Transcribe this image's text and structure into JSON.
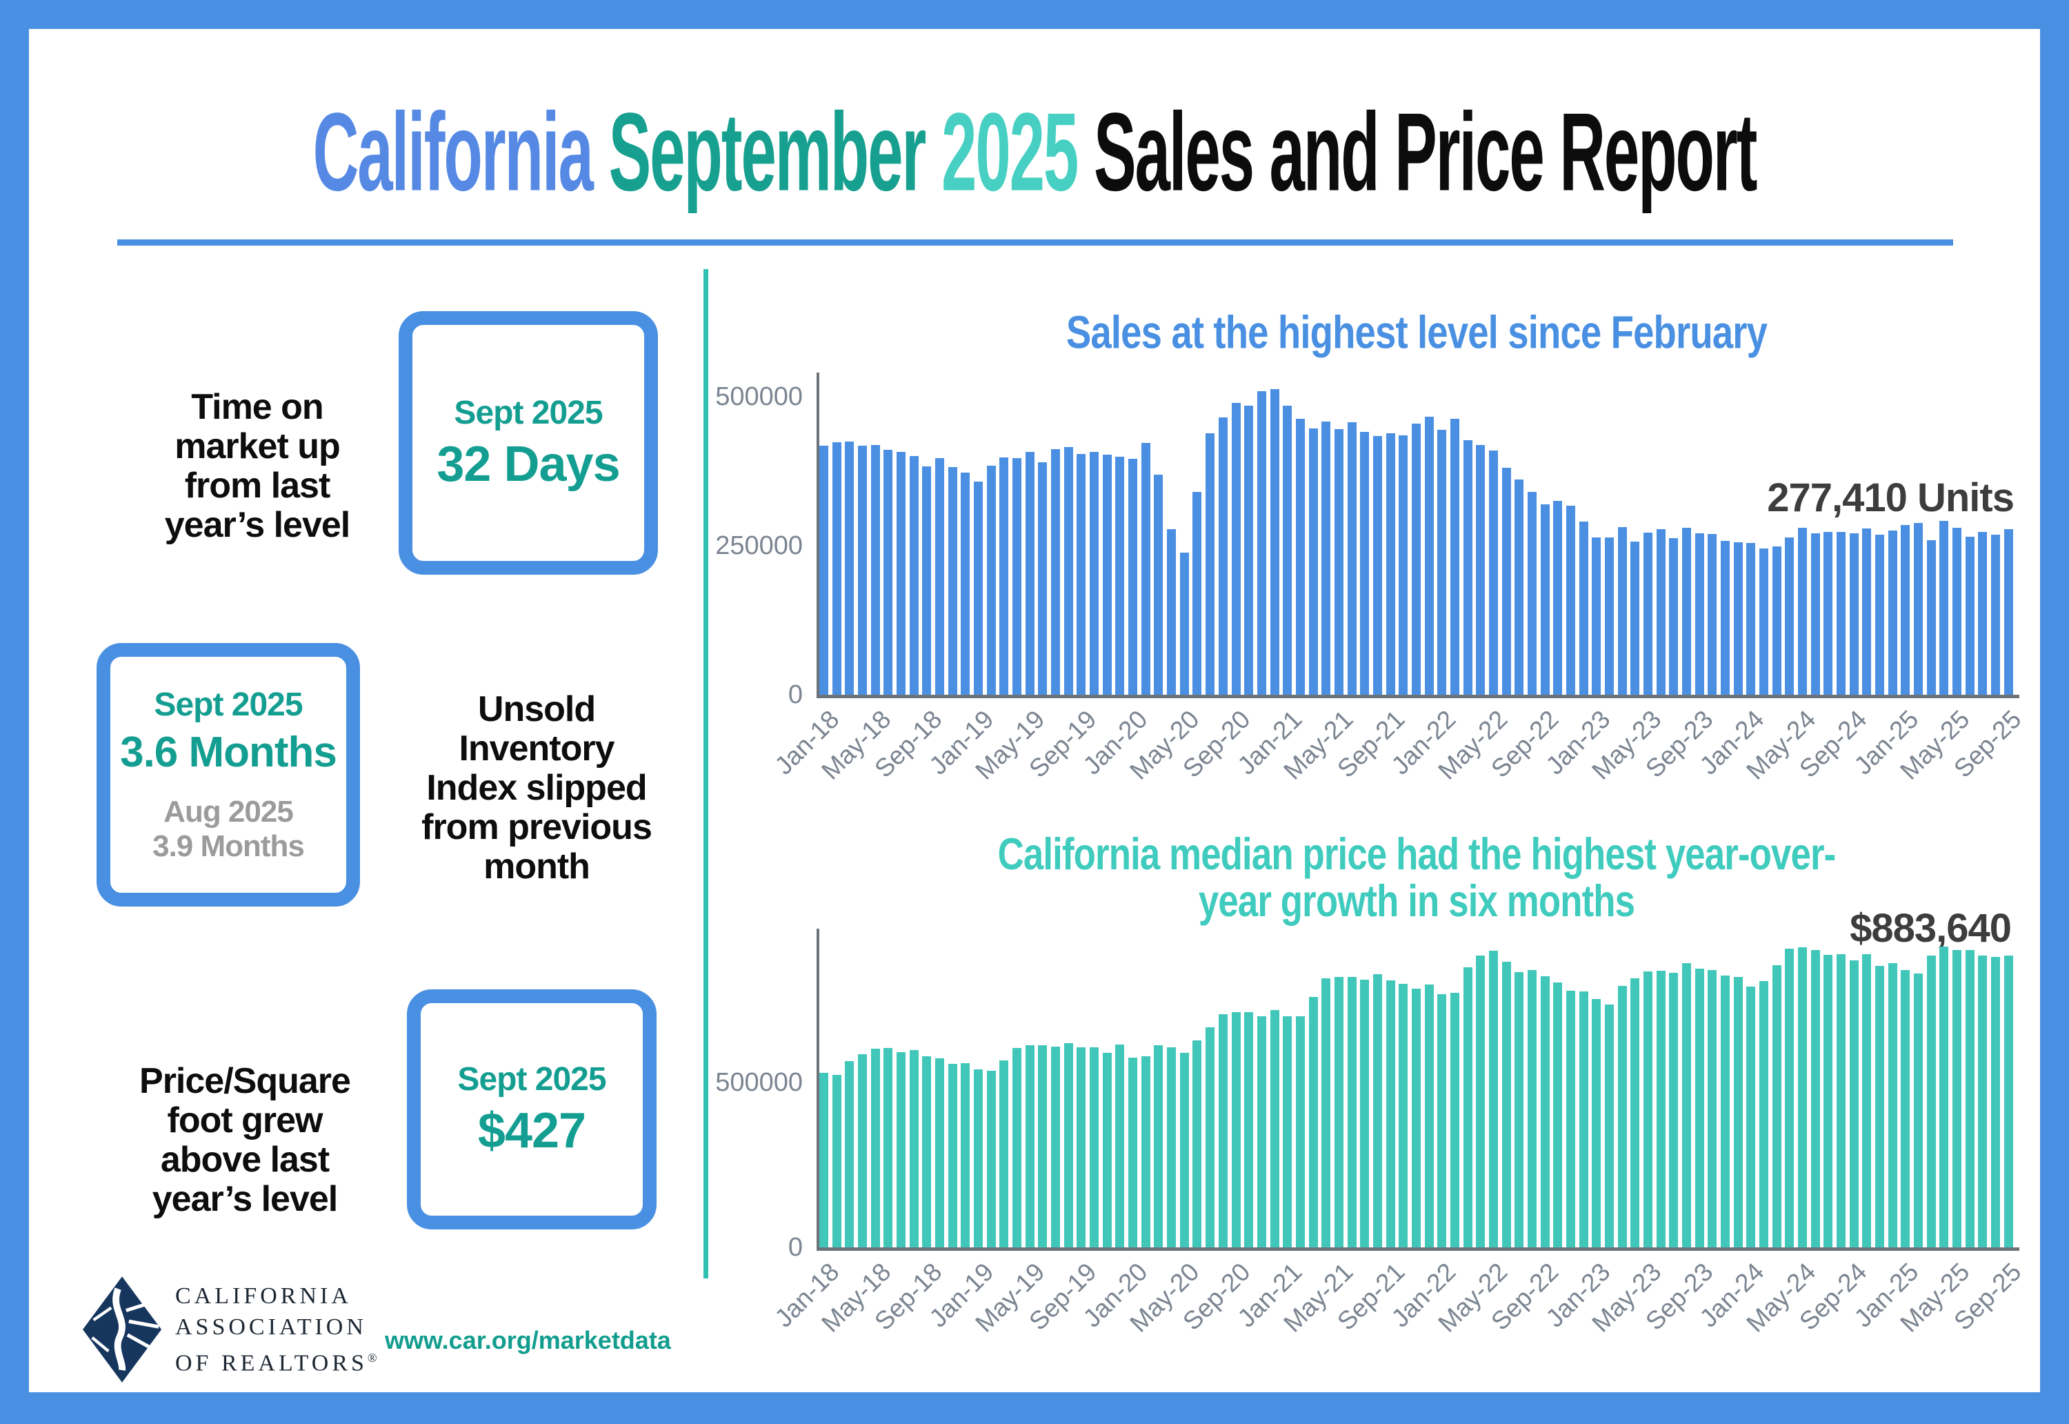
{
  "title": {
    "california": "California",
    "month": "September",
    "year": "2025",
    "rest": "Sales and Price Report"
  },
  "colors": {
    "blue": "#4a90e2",
    "title_blue": "#5589e4",
    "teal_dark": "#149e91",
    "teal_light": "#46cfc2",
    "bar_blue": "#4b8fe2",
    "bar_teal": "#41c7b9",
    "annotation_gray": "#3d3d3d",
    "axis_gray": "#7b8591",
    "divider_teal": "#2fc0b2",
    "logo_navy": "#17365e",
    "prev_gray": "#9b9b9b"
  },
  "left_panel": {
    "stat1": {
      "text": "Time on\nmarket up\nfrom last\nyear’s level",
      "period": "Sept 2025",
      "value": "32 Days"
    },
    "stat2": {
      "period": "Sept 2025",
      "value": "3.6 Months",
      "prev_period": "Aug 2025",
      "prev_value": "3.9 Months",
      "text": "Unsold\nInventory\nIndex slipped\nfrom previous\nmonth"
    },
    "stat3": {
      "text": "Price/Square\nfoot grew\nabove last\nyear’s level",
      "period": "Sept 2025",
      "value": "$427"
    },
    "logo": {
      "line1": "CALIFORNIA",
      "line2": "ASSOCIATION",
      "line3": "OF REALTORS",
      "reg": "®"
    },
    "url": "www.car.org/marketdata"
  },
  "chart_data": [
    {
      "type": "bar",
      "name": "existing-home-sales",
      "title": "Sales at the highest level since February",
      "annotation": "277,410 Units",
      "ylabel": "",
      "xlabel": "",
      "grid": false,
      "legend": "none",
      "ylim": [
        0,
        540000
      ],
      "yticks": [
        0,
        250000,
        500000
      ],
      "xtick_every": 4,
      "bar_color": "#4b8fe2",
      "x_tick_labels": [
        "Jan-18",
        "May-18",
        "Sep-18",
        "Jan-19",
        "May-19",
        "Sep-19",
        "Jan-20",
        "May-20",
        "Sep-20",
        "Jan-21",
        "May-21",
        "Sep-21",
        "Jan-22",
        "May-22",
        "Sep-22",
        "Jan-23",
        "May-23",
        "Sep-23",
        "Jan-24",
        "May-24",
        "Sep-24",
        "Jan-25",
        "May-25",
        "Sep-25"
      ],
      "values": [
        416960,
        422910,
        423990,
        417000,
        418380,
        410800,
        406920,
        399600,
        382550,
        397060,
        381400,
        372260,
        357730,
        383990,
        397960,
        396780,
        406960,
        389730,
        411630,
        414860,
        404030,
        407310,
        402880,
        398880,
        395550,
        421670,
        369390,
        277440,
        238740,
        339910,
        437890,
        465400,
        489590,
        484510,
        508820,
        511770,
        484730,
        462720,
        446410,
        458170,
        445660,
        457170,
        441110,
        434170,
        438190,
        434860,
        454450,
        466230,
        444540,
        462050,
        426970,
        419040,
        409550,
        380980,
        361280,
        340430,
        319340,
        325260,
        316480,
        290460,
        264060,
        263720,
        281050,
        256160,
        272180,
        277490,
        262050,
        279460,
        270200,
        269060,
        257490,
        255160,
        254110,
        245240,
        248070,
        264200,
        280350,
        270430,
        273340,
        272410,
        271010,
        279100,
        267800,
        274930,
        284540,
        288280,
        259110,
        291880,
        280350,
        264250,
        272410,
        268500,
        277410
      ]
    },
    {
      "type": "bar",
      "name": "median-price",
      "title": "California median price had the highest year-over-\nyear growth in six months",
      "annotation": "$883,640",
      "ylabel": "",
      "xlabel": "",
      "grid": false,
      "legend": "none",
      "ylim": [
        0,
        965000
      ],
      "yticks": [
        0,
        500000
      ],
      "xtick_every": 4,
      "bar_color": "#41c7b9",
      "x_tick_labels": [
        "Jan-18",
        "May-18",
        "Sep-18",
        "Jan-19",
        "May-19",
        "Sep-19",
        "Jan-20",
        "May-20",
        "Sep-20",
        "Jan-21",
        "May-21",
        "Sep-21",
        "Jan-22",
        "May-22",
        "Sep-22",
        "Jan-23",
        "May-23",
        "Sep-23",
        "Jan-24",
        "May-24",
        "Sep-24",
        "Jan-25",
        "May-25",
        "Sep-25"
      ],
      "values": [
        527780,
        522440,
        564830,
        584460,
        600860,
        602760,
        591460,
        596410,
        578850,
        572000,
        554760,
        557600,
        538690,
        534140,
        565880,
        602920,
        611190,
        611420,
        607990,
        617410,
        605680,
        605280,
        589770,
        615090,
        575160,
        578690,
        612440,
        606410,
        588070,
        626170,
        666320,
        706900,
        712430,
        711300,
        699000,
        717930,
        699890,
        699000,
        758990,
        813980,
        818260,
        819630,
        811170,
        827940,
        808890,
        798440,
        782480,
        796570,
        765580,
        771270,
        849080,
        884100,
        898980,
        863790,
        833910,
        839460,
        821680,
        801190,
        777500,
        774580,
        751330,
        735480,
        791490,
        815340,
        836110,
        838260,
        832340,
        859800,
        843340,
        840360,
        822200,
        819740,
        788940,
        806490,
        854490,
        904210,
        908040,
        900720,
        886560,
        888740,
        868150,
        888660,
        852880,
        861020,
        838850,
        829060,
        884350,
        910160,
        900170,
        899560,
        884050,
        879680,
        883640
      ]
    }
  ]
}
